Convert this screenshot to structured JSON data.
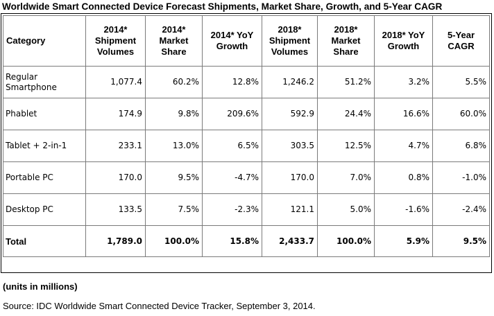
{
  "title": "Worldwide Smart Connected Device Forecast Shipments, Market Share, Growth, and 5-Year CAGR",
  "table": {
    "headers": [
      "Category",
      "2014* Shipment Volumes",
      "2014* Market Share",
      "2014* YoY Growth",
      "2018* Shipment Volumes",
      "2018* Market Share",
      "2018* YoY Growth",
      "5-Year CAGR"
    ],
    "rows": [
      [
        "Regular Smartphone",
        "1,077.4",
        "60.2%",
        "12.8%",
        "1,246.2",
        "51.2%",
        "3.2%",
        "5.5%"
      ],
      [
        "Phablet",
        "174.9",
        "9.8%",
        "209.6%",
        "592.9",
        "24.4%",
        "16.6%",
        "60.0%"
      ],
      [
        "Tablet + 2-in-1",
        "233.1",
        "13.0%",
        "6.5%",
        "303.5",
        "12.5%",
        "4.7%",
        "6.8%"
      ],
      [
        "Portable PC",
        "170.0",
        "9.5%",
        "-4.7%",
        "170.0",
        "7.0%",
        "0.8%",
        "-1.0%"
      ],
      [
        "Desktop PC",
        "133.5",
        "7.5%",
        "-2.3%",
        "121.1",
        "5.0%",
        "-1.6%",
        "-2.4%"
      ]
    ],
    "total": [
      "Total",
      "1,789.0",
      "100.0%",
      "15.8%",
      "2,433.7",
      "100.0%",
      "5.9%",
      "9.5%"
    ]
  },
  "units_note": "(units in millions)",
  "source": "Source:  IDC Worldwide Smart Connected Device Tracker, September 3, 2014."
}
